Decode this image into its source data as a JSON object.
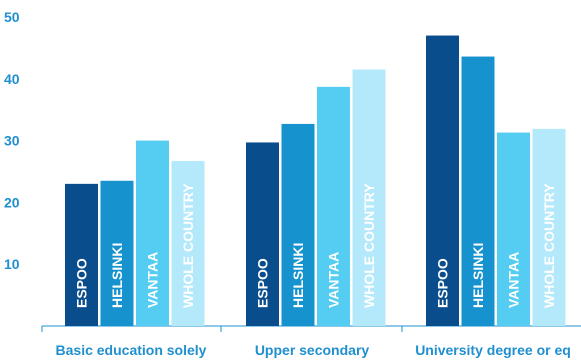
{
  "chart_data": {
    "type": "bar",
    "categories": [
      "Basic education solely",
      "Upper secondary",
      "University degree or eq"
    ],
    "series": [
      {
        "name": "ESPOO",
        "values": [
          23.0,
          29.7,
          47.0
        ]
      },
      {
        "name": "HELSINKI",
        "values": [
          23.5,
          32.7,
          43.6
        ]
      },
      {
        "name": "VANTAA",
        "values": [
          30.0,
          38.7,
          31.3
        ]
      },
      {
        "name": "WHOLE COUNTRY",
        "values": [
          26.7,
          41.5,
          31.9
        ]
      }
    ],
    "ylim": [
      0,
      50
    ],
    "yticks": [
      10,
      20,
      30,
      40,
      50
    ],
    "grid": false,
    "legend": "labels inside bars"
  },
  "colors": {
    "series": [
      "#0a4d8c",
      "#1693cf",
      "#55cdf2",
      "#b4e9fb"
    ],
    "axis_text": "#1f8fcf",
    "axis_line": "#1f8fcf",
    "bar_label": "#ffffff"
  }
}
